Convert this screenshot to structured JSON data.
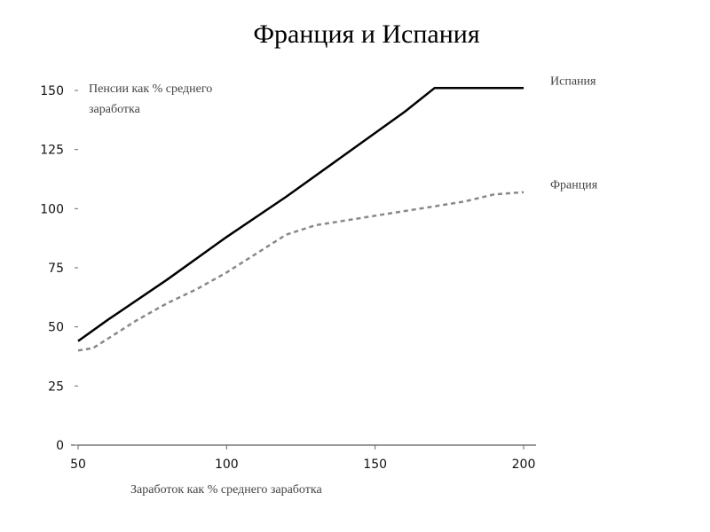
{
  "chart_data": {
    "type": "line",
    "title": "Франция и Испания",
    "ylabel_lines": [
      "Пенсии как % среднего",
      "заработка"
    ],
    "xlabel": "Заработок как % среднего заработка",
    "xlim": [
      50,
      200
    ],
    "ylim": [
      0,
      150
    ],
    "xticks": [
      50,
      100,
      150,
      200
    ],
    "yticks": [
      0,
      25,
      50,
      75,
      100,
      125,
      150
    ],
    "grid": false,
    "series": [
      {
        "name": "Испания",
        "style": "solid",
        "color": "#000000",
        "points": [
          [
            50,
            44
          ],
          [
            60,
            53
          ],
          [
            80,
            70
          ],
          [
            100,
            88
          ],
          [
            120,
            105
          ],
          [
            140,
            123
          ],
          [
            160,
            141
          ],
          [
            170,
            151
          ],
          [
            180,
            151
          ],
          [
            200,
            151
          ]
        ]
      },
      {
        "name": "Франция",
        "style": "dashed",
        "color": "#888888",
        "points": [
          [
            50,
            40
          ],
          [
            55,
            41
          ],
          [
            60,
            45
          ],
          [
            70,
            53
          ],
          [
            80,
            60
          ],
          [
            90,
            66
          ],
          [
            100,
            73
          ],
          [
            110,
            81
          ],
          [
            120,
            89
          ],
          [
            130,
            93
          ],
          [
            140,
            95
          ],
          [
            150,
            97
          ],
          [
            160,
            99
          ],
          [
            170,
            101
          ],
          [
            180,
            103
          ],
          [
            190,
            106
          ],
          [
            200,
            107
          ]
        ]
      }
    ]
  }
}
